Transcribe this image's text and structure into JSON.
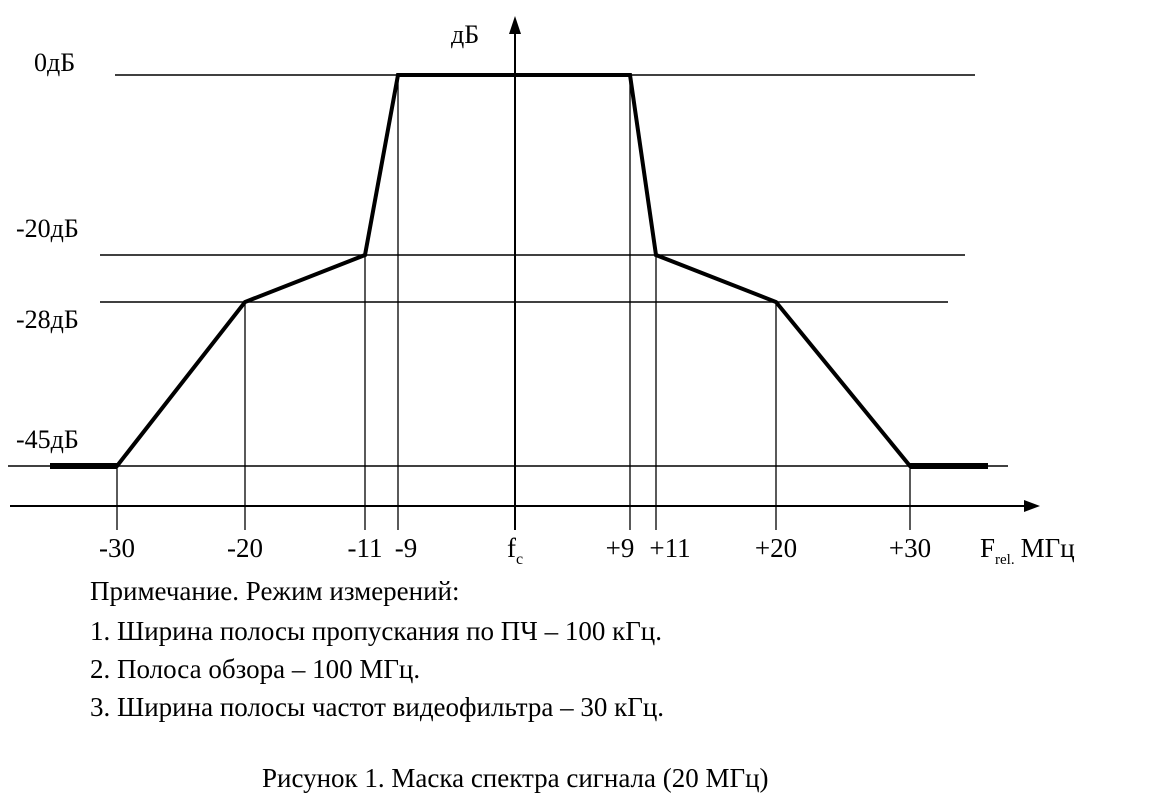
{
  "chart_data": {
    "type": "line",
    "ylabel": "дБ",
    "xlabel_main": "F",
    "xlabel_sub": "rel.",
    "xlabel_unit": "МГц",
    "center_label_main": "f",
    "center_label_sub": "c",
    "y_levels": [
      {
        "value": 0,
        "label": "0дБ"
      },
      {
        "value": -20,
        "label": "-20дБ"
      },
      {
        "value": -28,
        "label": "-28дБ"
      },
      {
        "value": -45,
        "label": "-45дБ"
      }
    ],
    "x_ticks": [
      {
        "value": -30,
        "label": "-30"
      },
      {
        "value": -20,
        "label": "-20"
      },
      {
        "value": -11,
        "label": "-11"
      },
      {
        "value": -9,
        "label": "-9"
      },
      {
        "value": 9,
        "label": "+9"
      },
      {
        "value": 11,
        "label": "+11"
      },
      {
        "value": 20,
        "label": "+20"
      },
      {
        "value": 30,
        "label": "+30"
      }
    ],
    "series": [
      {
        "x": [
          -35,
          -30,
          -20,
          -11,
          -9,
          9,
          11,
          20,
          30,
          36
        ],
        "y": [
          -45,
          -45,
          -28,
          -20,
          0,
          0,
          -20,
          -28,
          -45,
          -45
        ]
      }
    ],
    "grid": false,
    "legend": "none"
  },
  "notes": {
    "title": "Примечание. Режим измерений:",
    "items": [
      "1. Ширина полосы пропускания по ПЧ  – 100 кГц.",
      "2. Полоса обзора – 100 МГц.",
      "3. Ширина полосы частот видеофильтра – 30 кГц."
    ]
  },
  "caption": "Рисунок 1. Маска спектра сигнала (20 МГц)"
}
